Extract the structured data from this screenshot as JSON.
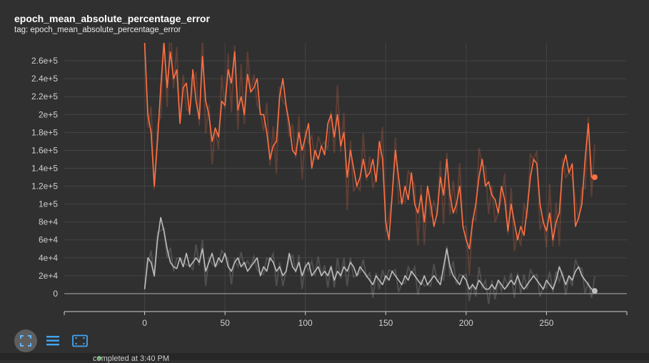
{
  "card": {
    "title": "epoch_mean_absolute_percentage_error",
    "tag": "tag: epoch_mean_absolute_percentage_error"
  },
  "toolbar": {
    "fit_icon": "fit-domain-icon",
    "lines_icon": "toggle-lines-icon",
    "expand_icon": "expand-icon"
  },
  "status": {
    "text": "completed at 3:40 PM"
  },
  "colors": {
    "background": "#303030",
    "train": "#ff7043",
    "validation": "#bdbdbd",
    "grid": "#444444",
    "axis": "#cfcfcf"
  },
  "chart_data": {
    "type": "line",
    "title": "epoch_mean_absolute_percentage_error",
    "xlabel": "",
    "ylabel": "",
    "xlim": [
      -50,
      300
    ],
    "ylim": [
      -20000,
      280000
    ],
    "x_ticks": [
      0,
      50,
      100,
      150,
      200,
      250
    ],
    "y_ticks": [
      0,
      20000,
      40000,
      60000,
      80000,
      100000,
      120000,
      140000,
      160000,
      180000,
      200000,
      220000,
      240000,
      260000
    ],
    "y_tick_labels": [
      "0",
      "2e+4",
      "4e+4",
      "6e+4",
      "8e+4",
      "1e+5",
      "1.2e+5",
      "1.4e+5",
      "1.6e+5",
      "1.8e+5",
      "2e+5",
      "2.2e+5",
      "2.4e+5",
      "2.6e+5"
    ],
    "grid": true,
    "legend": "none",
    "series": [
      {
        "color": "#ff7043",
        "points": [
          [
            0,
            280000
          ],
          [
            2,
            200000
          ],
          [
            4,
            180000
          ],
          [
            6,
            120000
          ],
          [
            8,
            170000
          ],
          [
            10,
            230000
          ],
          [
            12,
            280000
          ],
          [
            14,
            230000
          ],
          [
            16,
            270000
          ],
          [
            18,
            240000
          ],
          [
            20,
            250000
          ],
          [
            22,
            190000
          ],
          [
            24,
            230000
          ],
          [
            26,
            235000
          ],
          [
            28,
            200000
          ],
          [
            30,
            250000
          ],
          [
            32,
            215000
          ],
          [
            34,
            195000
          ],
          [
            36,
            265000
          ],
          [
            38,
            215000
          ],
          [
            40,
            200000
          ],
          [
            42,
            170000
          ],
          [
            44,
            185000
          ],
          [
            46,
            175000
          ],
          [
            48,
            215000
          ],
          [
            50,
            210000
          ],
          [
            52,
            250000
          ],
          [
            54,
            235000
          ],
          [
            56,
            270000
          ],
          [
            58,
            205000
          ],
          [
            60,
            220000
          ],
          [
            62,
            200000
          ],
          [
            64,
            245000
          ],
          [
            66,
            225000
          ],
          [
            68,
            230000
          ],
          [
            70,
            240000
          ],
          [
            72,
            200000
          ],
          [
            74,
            200000
          ],
          [
            76,
            180000
          ],
          [
            78,
            150000
          ],
          [
            80,
            165000
          ],
          [
            82,
            170000
          ],
          [
            84,
            220000
          ],
          [
            86,
            240000
          ],
          [
            88,
            210000
          ],
          [
            90,
            190000
          ],
          [
            92,
            160000
          ],
          [
            94,
            155000
          ],
          [
            96,
            180000
          ],
          [
            98,
            160000
          ],
          [
            100,
            175000
          ],
          [
            102,
            190000
          ],
          [
            104,
            140000
          ],
          [
            106,
            160000
          ],
          [
            108,
            150000
          ],
          [
            110,
            165000
          ],
          [
            112,
            155000
          ],
          [
            114,
            190000
          ],
          [
            116,
            200000
          ],
          [
            118,
            175000
          ],
          [
            120,
            200000
          ],
          [
            122,
            165000
          ],
          [
            124,
            180000
          ],
          [
            126,
            130000
          ],
          [
            128,
            160000
          ],
          [
            130,
            140000
          ],
          [
            132,
            120000
          ],
          [
            134,
            130000
          ],
          [
            136,
            150000
          ],
          [
            138,
            130000
          ],
          [
            140,
            135000
          ],
          [
            142,
            150000
          ],
          [
            144,
            125000
          ],
          [
            146,
            170000
          ],
          [
            148,
            150000
          ],
          [
            150,
            80000
          ],
          [
            152,
            60000
          ],
          [
            154,
            110000
          ],
          [
            156,
            160000
          ],
          [
            158,
            130000
          ],
          [
            160,
            100000
          ],
          [
            162,
            120000
          ],
          [
            164,
            105000
          ],
          [
            166,
            135000
          ],
          [
            168,
            100000
          ],
          [
            170,
            90000
          ],
          [
            172,
            110000
          ],
          [
            174,
            80000
          ],
          [
            176,
            120000
          ],
          [
            178,
            100000
          ],
          [
            180,
            75000
          ],
          [
            182,
            90000
          ],
          [
            184,
            130000
          ],
          [
            186,
            110000
          ],
          [
            188,
            150000
          ],
          [
            190,
            110000
          ],
          [
            192,
            90000
          ],
          [
            194,
            100000
          ],
          [
            196,
            120000
          ],
          [
            198,
            75000
          ],
          [
            200,
            60000
          ],
          [
            202,
            50000
          ],
          [
            204,
            80000
          ],
          [
            206,
            100000
          ],
          [
            208,
            130000
          ],
          [
            210,
            150000
          ],
          [
            212,
            120000
          ],
          [
            214,
            125000
          ],
          [
            216,
            110000
          ],
          [
            218,
            105000
          ],
          [
            220,
            90000
          ],
          [
            222,
            120000
          ],
          [
            224,
            105000
          ],
          [
            226,
            70000
          ],
          [
            228,
            100000
          ],
          [
            230,
            80000
          ],
          [
            232,
            60000
          ],
          [
            234,
            75000
          ],
          [
            236,
            65000
          ],
          [
            238,
            95000
          ],
          [
            240,
            130000
          ],
          [
            242,
            150000
          ],
          [
            244,
            145000
          ],
          [
            246,
            100000
          ],
          [
            248,
            80000
          ],
          [
            250,
            70000
          ],
          [
            252,
            90000
          ],
          [
            254,
            60000
          ],
          [
            256,
            80000
          ],
          [
            258,
            90000
          ],
          [
            260,
            140000
          ],
          [
            262,
            155000
          ],
          [
            264,
            135000
          ],
          [
            266,
            145000
          ],
          [
            268,
            75000
          ],
          [
            270,
            85000
          ],
          [
            272,
            100000
          ],
          [
            274,
            150000
          ],
          [
            276,
            190000
          ],
          [
            278,
            130000
          ],
          [
            280,
            130000
          ]
        ]
      },
      {
        "color": "#bdbdbd",
        "points": [
          [
            0,
            5000
          ],
          [
            2,
            40000
          ],
          [
            4,
            35000
          ],
          [
            6,
            20000
          ],
          [
            8,
            60000
          ],
          [
            10,
            85000
          ],
          [
            12,
            70000
          ],
          [
            14,
            50000
          ],
          [
            16,
            35000
          ],
          [
            18,
            30000
          ],
          [
            20,
            28000
          ],
          [
            22,
            40000
          ],
          [
            24,
            30000
          ],
          [
            26,
            45000
          ],
          [
            28,
            30000
          ],
          [
            30,
            35000
          ],
          [
            32,
            40000
          ],
          [
            34,
            35000
          ],
          [
            36,
            50000
          ],
          [
            38,
            25000
          ],
          [
            40,
            35000
          ],
          [
            42,
            45000
          ],
          [
            44,
            30000
          ],
          [
            46,
            40000
          ],
          [
            48,
            35000
          ],
          [
            50,
            45000
          ],
          [
            52,
            30000
          ],
          [
            54,
            25000
          ],
          [
            56,
            35000
          ],
          [
            58,
            40000
          ],
          [
            60,
            30000
          ],
          [
            62,
            35000
          ],
          [
            64,
            25000
          ],
          [
            66,
            30000
          ],
          [
            68,
            35000
          ],
          [
            70,
            40000
          ],
          [
            72,
            20000
          ],
          [
            74,
            30000
          ],
          [
            76,
            25000
          ],
          [
            78,
            40000
          ],
          [
            80,
            35000
          ],
          [
            82,
            25000
          ],
          [
            84,
            30000
          ],
          [
            86,
            20000
          ],
          [
            88,
            25000
          ],
          [
            90,
            45000
          ],
          [
            92,
            30000
          ],
          [
            94,
            25000
          ],
          [
            96,
            35000
          ],
          [
            98,
            20000
          ],
          [
            100,
            30000
          ],
          [
            102,
            35000
          ],
          [
            104,
            20000
          ],
          [
            106,
            25000
          ],
          [
            108,
            30000
          ],
          [
            110,
            20000
          ],
          [
            112,
            25000
          ],
          [
            114,
            20000
          ],
          [
            116,
            30000
          ],
          [
            118,
            15000
          ],
          [
            120,
            25000
          ],
          [
            122,
            20000
          ],
          [
            124,
            30000
          ],
          [
            126,
            25000
          ],
          [
            128,
            35000
          ],
          [
            130,
            30000
          ],
          [
            132,
            20000
          ],
          [
            134,
            30000
          ],
          [
            136,
            25000
          ],
          [
            138,
            20000
          ],
          [
            140,
            15000
          ],
          [
            142,
            10000
          ],
          [
            144,
            20000
          ],
          [
            146,
            15000
          ],
          [
            148,
            10000
          ],
          [
            150,
            20000
          ],
          [
            152,
            15000
          ],
          [
            154,
            25000
          ],
          [
            156,
            20000
          ],
          [
            158,
            15000
          ],
          [
            160,
            10000
          ],
          [
            162,
            20000
          ],
          [
            164,
            15000
          ],
          [
            166,
            25000
          ],
          [
            168,
            20000
          ],
          [
            170,
            15000
          ],
          [
            172,
            10000
          ],
          [
            174,
            20000
          ],
          [
            176,
            10000
          ],
          [
            178,
            15000
          ],
          [
            180,
            20000
          ],
          [
            182,
            15000
          ],
          [
            184,
            10000
          ],
          [
            186,
            30000
          ],
          [
            188,
            50000
          ],
          [
            190,
            30000
          ],
          [
            192,
            20000
          ],
          [
            194,
            15000
          ],
          [
            196,
            10000
          ],
          [
            198,
            20000
          ],
          [
            200,
            15000
          ],
          [
            202,
            5000
          ],
          [
            204,
            10000
          ],
          [
            206,
            5000
          ],
          [
            208,
            15000
          ],
          [
            210,
            10000
          ],
          [
            212,
            5000
          ],
          [
            214,
            5000
          ],
          [
            216,
            10000
          ],
          [
            218,
            5000
          ],
          [
            220,
            15000
          ],
          [
            222,
            10000
          ],
          [
            224,
            5000
          ],
          [
            226,
            10000
          ],
          [
            228,
            15000
          ],
          [
            230,
            10000
          ],
          [
            232,
            20000
          ],
          [
            234,
            10000
          ],
          [
            236,
            5000
          ],
          [
            238,
            10000
          ],
          [
            240,
            15000
          ],
          [
            242,
            20000
          ],
          [
            244,
            15000
          ],
          [
            246,
            10000
          ],
          [
            248,
            5000
          ],
          [
            250,
            15000
          ],
          [
            252,
            10000
          ],
          [
            254,
            5000
          ],
          [
            256,
            15000
          ],
          [
            258,
            30000
          ],
          [
            260,
            20000
          ],
          [
            262,
            10000
          ],
          [
            264,
            20000
          ],
          [
            266,
            15000
          ],
          [
            268,
            25000
          ],
          [
            270,
            30000
          ],
          [
            272,
            20000
          ],
          [
            274,
            15000
          ],
          [
            276,
            10000
          ],
          [
            278,
            5000
          ],
          [
            280,
            3000
          ]
        ]
      }
    ]
  }
}
